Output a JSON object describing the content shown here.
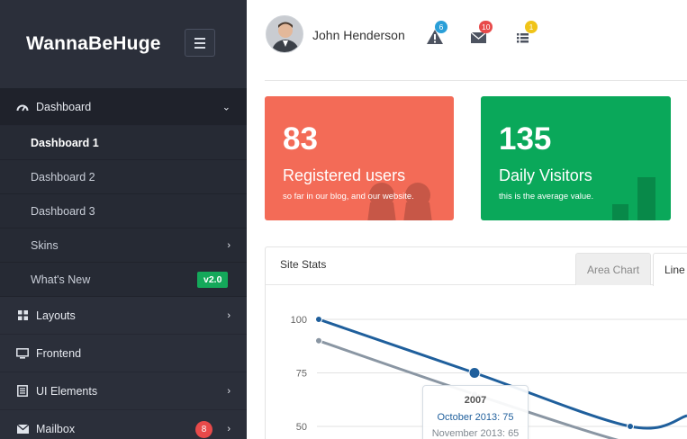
{
  "sidebar": {
    "brand": "WannaBeHuge",
    "items": [
      {
        "label": "Dashboard",
        "icon": "gauge-icon"
      },
      {
        "label": "Dashboard 1"
      },
      {
        "label": "Dashboard 2"
      },
      {
        "label": "Dashboard 3"
      },
      {
        "label": "Skins"
      },
      {
        "label": "What's New",
        "badge": "v2.0"
      },
      {
        "label": "Layouts",
        "icon": "grid-icon"
      },
      {
        "label": "Frontend",
        "icon": "monitor-icon"
      },
      {
        "label": "UI Elements",
        "icon": "book-icon"
      },
      {
        "label": "Mailbox",
        "icon": "envelope-icon",
        "badge": "8"
      }
    ]
  },
  "header": {
    "user_name": "John Henderson",
    "alerts_count": "6",
    "messages_count": "10",
    "tasks_count": "1",
    "colors": {
      "alerts": "#2a9fd8",
      "messages": "#e84a4a",
      "tasks": "#f0c419"
    }
  },
  "stats": {
    "registered": {
      "value": "83",
      "label": "Registered users",
      "sub": "so far in our blog, and our website."
    },
    "visitors": {
      "value": "135",
      "label": "Daily Visitors",
      "sub": "this is the average value."
    }
  },
  "panel": {
    "title": "Site Stats",
    "tabs": [
      "Area Chart",
      "Line"
    ]
  },
  "chart_data": {
    "type": "line",
    "y_ticks": [
      "100",
      "75",
      "50"
    ],
    "ylim": [
      40,
      100
    ],
    "series": [
      {
        "name": "October 2013",
        "color": "#1f5f9c",
        "values": [
          100,
          75,
          50,
          55
        ]
      },
      {
        "name": "November 2013",
        "color": "#8a96a3",
        "values": [
          90,
          65,
          42,
          40
        ]
      }
    ],
    "tooltip": {
      "year": "2007",
      "line1": "October 2013: 75",
      "line2": "November 2013: 65"
    }
  },
  "colors": {
    "sidebar": "#2b2f3a",
    "card_red": "#f36b57",
    "card_green": "#0aa85a",
    "badge_green": "#14a85a"
  }
}
